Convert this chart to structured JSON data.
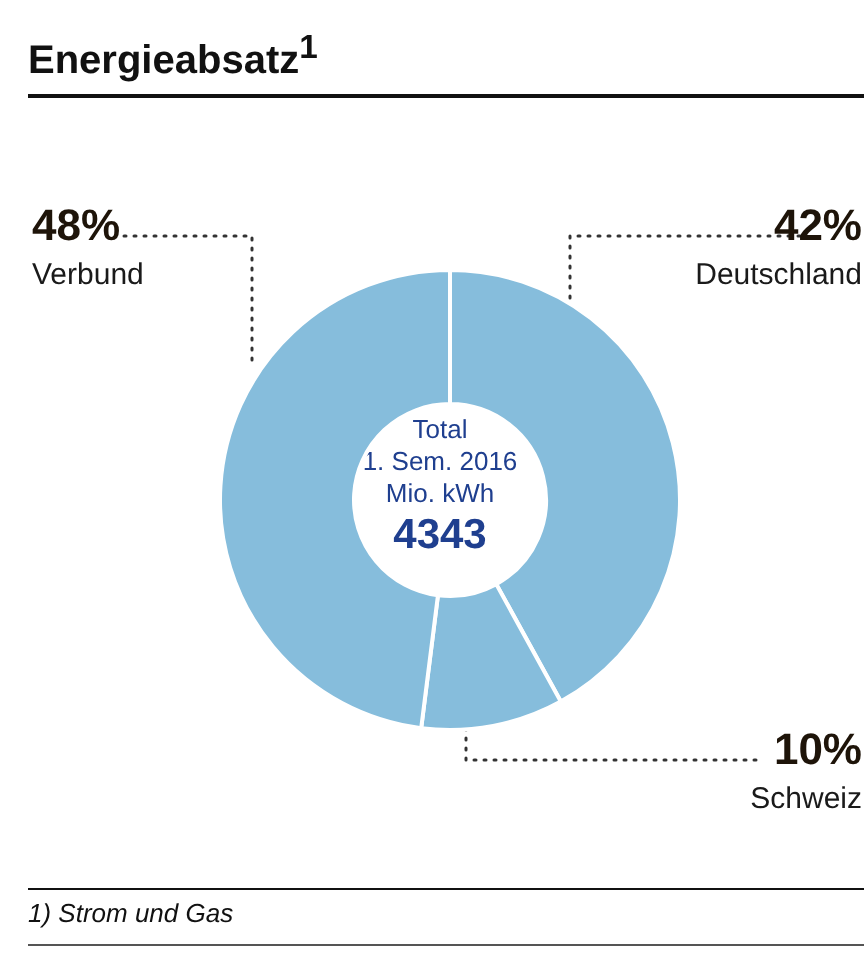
{
  "chart_data": {
    "type": "donut",
    "title": "Energieabsatz$^{1}$",
    "categories": [
      "Deutschland",
      "Schweiz",
      "Verbund"
    ],
    "values": [
      42,
      10,
      48
    ],
    "value_labels": [
      "42%",
      "10%",
      "48%"
    ],
    "colors": [
      "#86bddc",
      "#86bddc",
      "#86bddc"
    ],
    "annotations": [
      "Total",
      "1. Sem. 2016",
      "Mio. kWh",
      "4343",
      "1) Strom und Gas"
    ],
    "legend": false
  }
}
